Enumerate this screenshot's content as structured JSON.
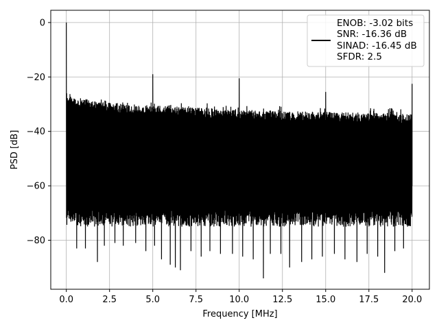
{
  "chart_data": {
    "type": "line",
    "title": "",
    "xlabel": "Frequency [MHz]",
    "ylabel": "PSD [dB]",
    "xlim": [
      -0.9,
      21.0
    ],
    "ylim": [
      -98,
      4.5
    ],
    "x_ticks": [
      0.0,
      2.5,
      5.0,
      7.5,
      10.0,
      12.5,
      15.0,
      17.5,
      20.0
    ],
    "x_tick_labels": [
      "0.0",
      "2.5",
      "5.0",
      "7.5",
      "10.0",
      "12.5",
      "15.0",
      "17.5",
      "20.0"
    ],
    "y_ticks": [
      0,
      -20,
      -40,
      -60,
      -80
    ],
    "y_tick_labels": [
      "0",
      "−20",
      "−40",
      "−60",
      "−80"
    ],
    "grid": true,
    "legend_position": "top-right",
    "line_color": "#000000",
    "series": [
      {
        "legend_lines": [
          "ENOB: -3.02 bits",
          "SNR: -16.36 dB",
          "SINAD: -16.45 dB",
          "SFDR: 2.5"
        ],
        "x_range": [
          0.0,
          20.0
        ],
        "noise_upper_envelope": [
          [
            0.0,
            -27
          ],
          [
            2.5,
            -29.5
          ],
          [
            5.0,
            -30.5
          ],
          [
            10.0,
            -32
          ],
          [
            12.5,
            -32.5
          ],
          [
            20.0,
            -33.5
          ]
        ],
        "noise_lower_typical": -72,
        "noise_deep_dips": [
          [
            0.6,
            -83
          ],
          [
            1.1,
            -83
          ],
          [
            1.8,
            -88
          ],
          [
            2.2,
            -82
          ],
          [
            2.8,
            -81
          ],
          [
            3.3,
            -82
          ],
          [
            4.0,
            -81
          ],
          [
            4.6,
            -84
          ],
          [
            5.1,
            -82
          ],
          [
            5.5,
            -87
          ],
          [
            6.0,
            -89
          ],
          [
            6.3,
            -90
          ],
          [
            6.6,
            -91
          ],
          [
            7.2,
            -84
          ],
          [
            7.8,
            -86
          ],
          [
            8.3,
            -84
          ],
          [
            8.9,
            -85
          ],
          [
            9.6,
            -85
          ],
          [
            10.2,
            -86
          ],
          [
            10.8,
            -87
          ],
          [
            11.4,
            -94
          ],
          [
            11.8,
            -85
          ],
          [
            12.4,
            -85
          ],
          [
            12.9,
            -90
          ],
          [
            13.6,
            -88
          ],
          [
            14.2,
            -87
          ],
          [
            14.8,
            -86
          ],
          [
            15.5,
            -85
          ],
          [
            16.1,
            -87
          ],
          [
            16.8,
            -88
          ],
          [
            17.4,
            -85
          ],
          [
            18.0,
            -86
          ],
          [
            18.4,
            -92
          ],
          [
            19.0,
            -84
          ],
          [
            19.5,
            -83
          ]
        ],
        "spikes": [
          {
            "x": 0.0,
            "y": 0
          },
          {
            "x": 5.0,
            "y": -19
          },
          {
            "x": 10.0,
            "y": -20.5
          },
          {
            "x": 15.0,
            "y": -25.5
          },
          {
            "x": 20.0,
            "y": -22.5
          }
        ]
      }
    ]
  }
}
